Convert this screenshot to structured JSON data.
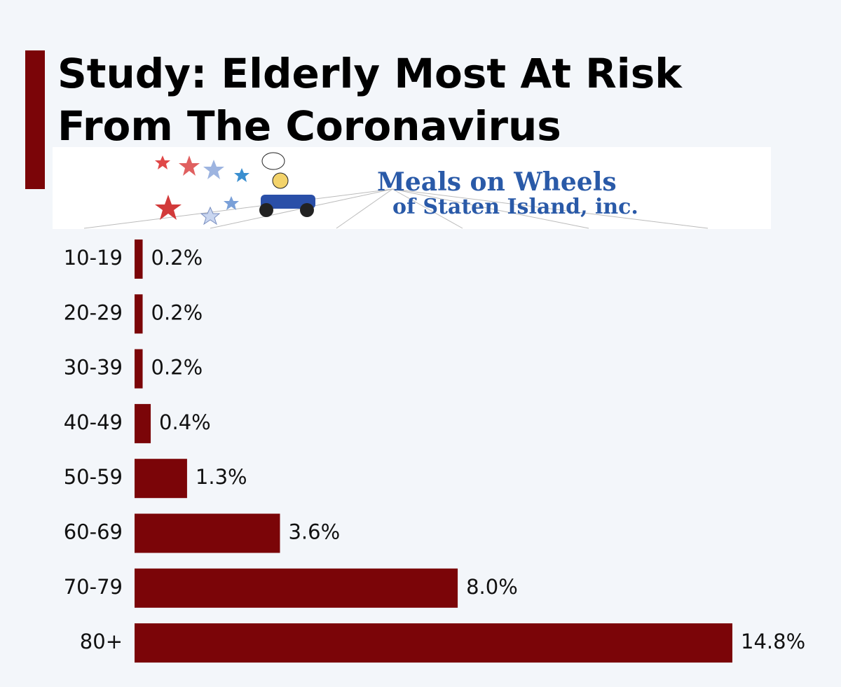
{
  "chart_data": {
    "type": "bar",
    "orientation": "horizontal",
    "title": [
      "Study: Elderly Most At Risk",
      "From The Coronavirus"
    ],
    "logo_text": [
      "Meals on Wheels",
      "of Staten Island, inc."
    ],
    "categories": [
      "10-19",
      "20-29",
      "30-39",
      "40-49",
      "50-59",
      "60-69",
      "70-79",
      "80+"
    ],
    "values": [
      0.2,
      0.2,
      0.2,
      0.4,
      1.3,
      3.6,
      8.0,
      14.8
    ],
    "value_labels": [
      "0.2%",
      "0.2%",
      "0.2%",
      "0.4%",
      "1.3%",
      "3.6%",
      "8.0%",
      "14.8%"
    ],
    "color": "#7b0508"
  }
}
